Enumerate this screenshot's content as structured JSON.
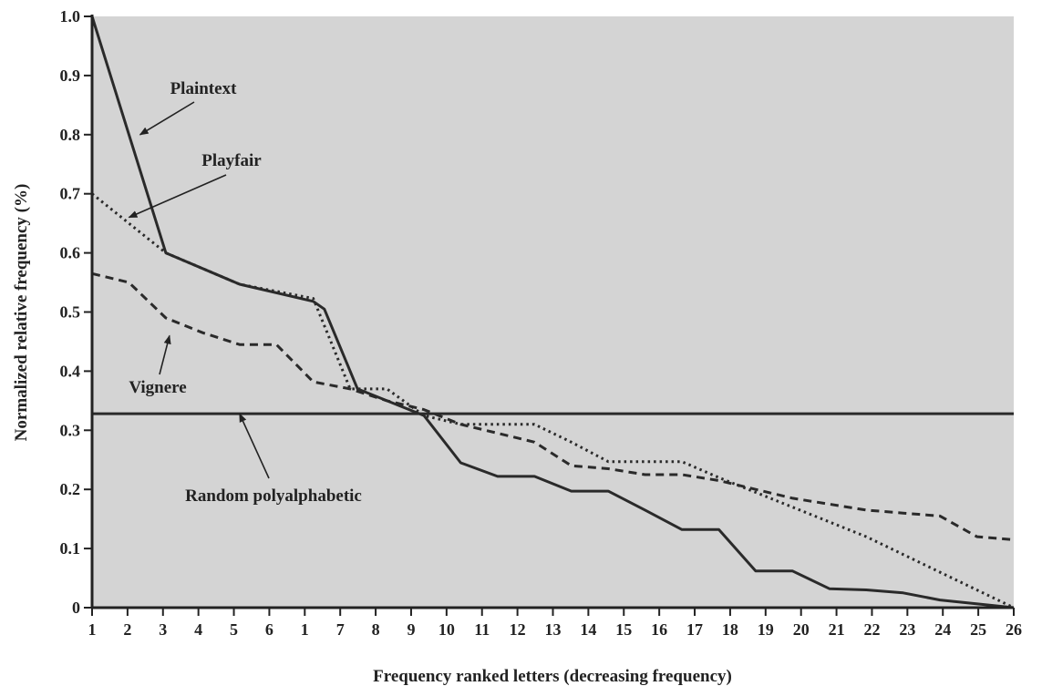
{
  "chart_data": {
    "type": "line",
    "title": "",
    "xlabel": "Frequency ranked letters (decreasing frequency)",
    "ylabel": "Normalized relative frequency (%)",
    "x_tick_labels": [
      "1",
      "2",
      "3",
      "4",
      "5",
      "6",
      "1",
      "7",
      "8",
      "9",
      "10",
      "11",
      "12",
      "13",
      "14",
      "15",
      "16",
      "17",
      "18",
      "19",
      "20",
      "21",
      "22",
      "23",
      "24",
      "25",
      "26"
    ],
    "y_ticks": [
      0,
      0.1,
      0.2,
      0.3,
      0.4,
      0.5,
      0.6,
      0.7,
      0.8,
      0.9,
      1.0
    ],
    "y_tick_labels": [
      "0",
      "0.1",
      "0.2",
      "0.3",
      "0.4",
      "0.5",
      "0.6",
      "0.7",
      "0.8",
      "0.9",
      "1.0"
    ],
    "xlim": [
      1,
      26
    ],
    "ylim": [
      0,
      1.0
    ],
    "grid": false,
    "background_color": "#d4d4d4",
    "line_color": "#2a2a2a",
    "series": [
      {
        "name": "Plaintext",
        "style": "solid",
        "points": [
          [
            1,
            1.0
          ],
          [
            3,
            0.6
          ],
          [
            5,
            0.547
          ],
          [
            7,
            0.518
          ],
          [
            7.3,
            0.505
          ],
          [
            8.2,
            0.37
          ],
          [
            9,
            0.35
          ],
          [
            10,
            0.325
          ],
          [
            11,
            0.245
          ],
          [
            12,
            0.222
          ],
          [
            13,
            0.222
          ],
          [
            14,
            0.197
          ],
          [
            15,
            0.197
          ],
          [
            16,
            0.165
          ],
          [
            17,
            0.132
          ],
          [
            18,
            0.132
          ],
          [
            19,
            0.062
          ],
          [
            20,
            0.062
          ],
          [
            21,
            0.032
          ],
          [
            22,
            0.03
          ],
          [
            23,
            0.025
          ],
          [
            24,
            0.013
          ],
          [
            26,
            0
          ]
        ]
      },
      {
        "name": "Playfair",
        "style": "dotted",
        "points": [
          [
            1,
            0.7
          ],
          [
            3,
            0.6
          ],
          [
            5,
            0.547
          ],
          [
            7,
            0.523
          ],
          [
            8,
            0.37
          ],
          [
            9,
            0.37
          ],
          [
            10,
            0.325
          ],
          [
            11,
            0.31
          ],
          [
            12,
            0.31
          ],
          [
            13,
            0.31
          ],
          [
            14,
            0.28
          ],
          [
            15,
            0.247
          ],
          [
            16,
            0.247
          ],
          [
            17,
            0.247
          ],
          [
            18,
            0.22
          ],
          [
            20,
            0.17
          ],
          [
            22,
            0.12
          ],
          [
            24,
            0.06
          ],
          [
            26,
            0
          ]
        ]
      },
      {
        "name": "Vignere",
        "style": "dashed",
        "points": [
          [
            1,
            0.565
          ],
          [
            2,
            0.55
          ],
          [
            3,
            0.49
          ],
          [
            4,
            0.465
          ],
          [
            5,
            0.445
          ],
          [
            6,
            0.445
          ],
          [
            7,
            0.382
          ],
          [
            8,
            0.37
          ],
          [
            9,
            0.35
          ],
          [
            10,
            0.335
          ],
          [
            11,
            0.31
          ],
          [
            12,
            0.295
          ],
          [
            13,
            0.28
          ],
          [
            14,
            0.24
          ],
          [
            15,
            0.235
          ],
          [
            16,
            0.225
          ],
          [
            17,
            0.225
          ],
          [
            18,
            0.215
          ],
          [
            19,
            0.2
          ],
          [
            20,
            0.185
          ],
          [
            21,
            0.175
          ],
          [
            22,
            0.165
          ],
          [
            23,
            0.16
          ],
          [
            24,
            0.155
          ],
          [
            25,
            0.12
          ],
          [
            26,
            0.115
          ]
        ]
      },
      {
        "name": "Random polyalphabetic",
        "style": "solid",
        "points": [
          [
            1,
            0.328
          ],
          [
            26,
            0.328
          ]
        ]
      }
    ],
    "annotations": [
      {
        "text": "Plaintext",
        "target": [
          2.3,
          0.8
        ]
      },
      {
        "text": "Playfair",
        "target": [
          2.0,
          0.66
        ]
      },
      {
        "text": "Vignere",
        "target": [
          3.1,
          0.46
        ]
      },
      {
        "text": "Random polyalphabetic",
        "target": [
          5.0,
          0.328
        ]
      }
    ]
  }
}
